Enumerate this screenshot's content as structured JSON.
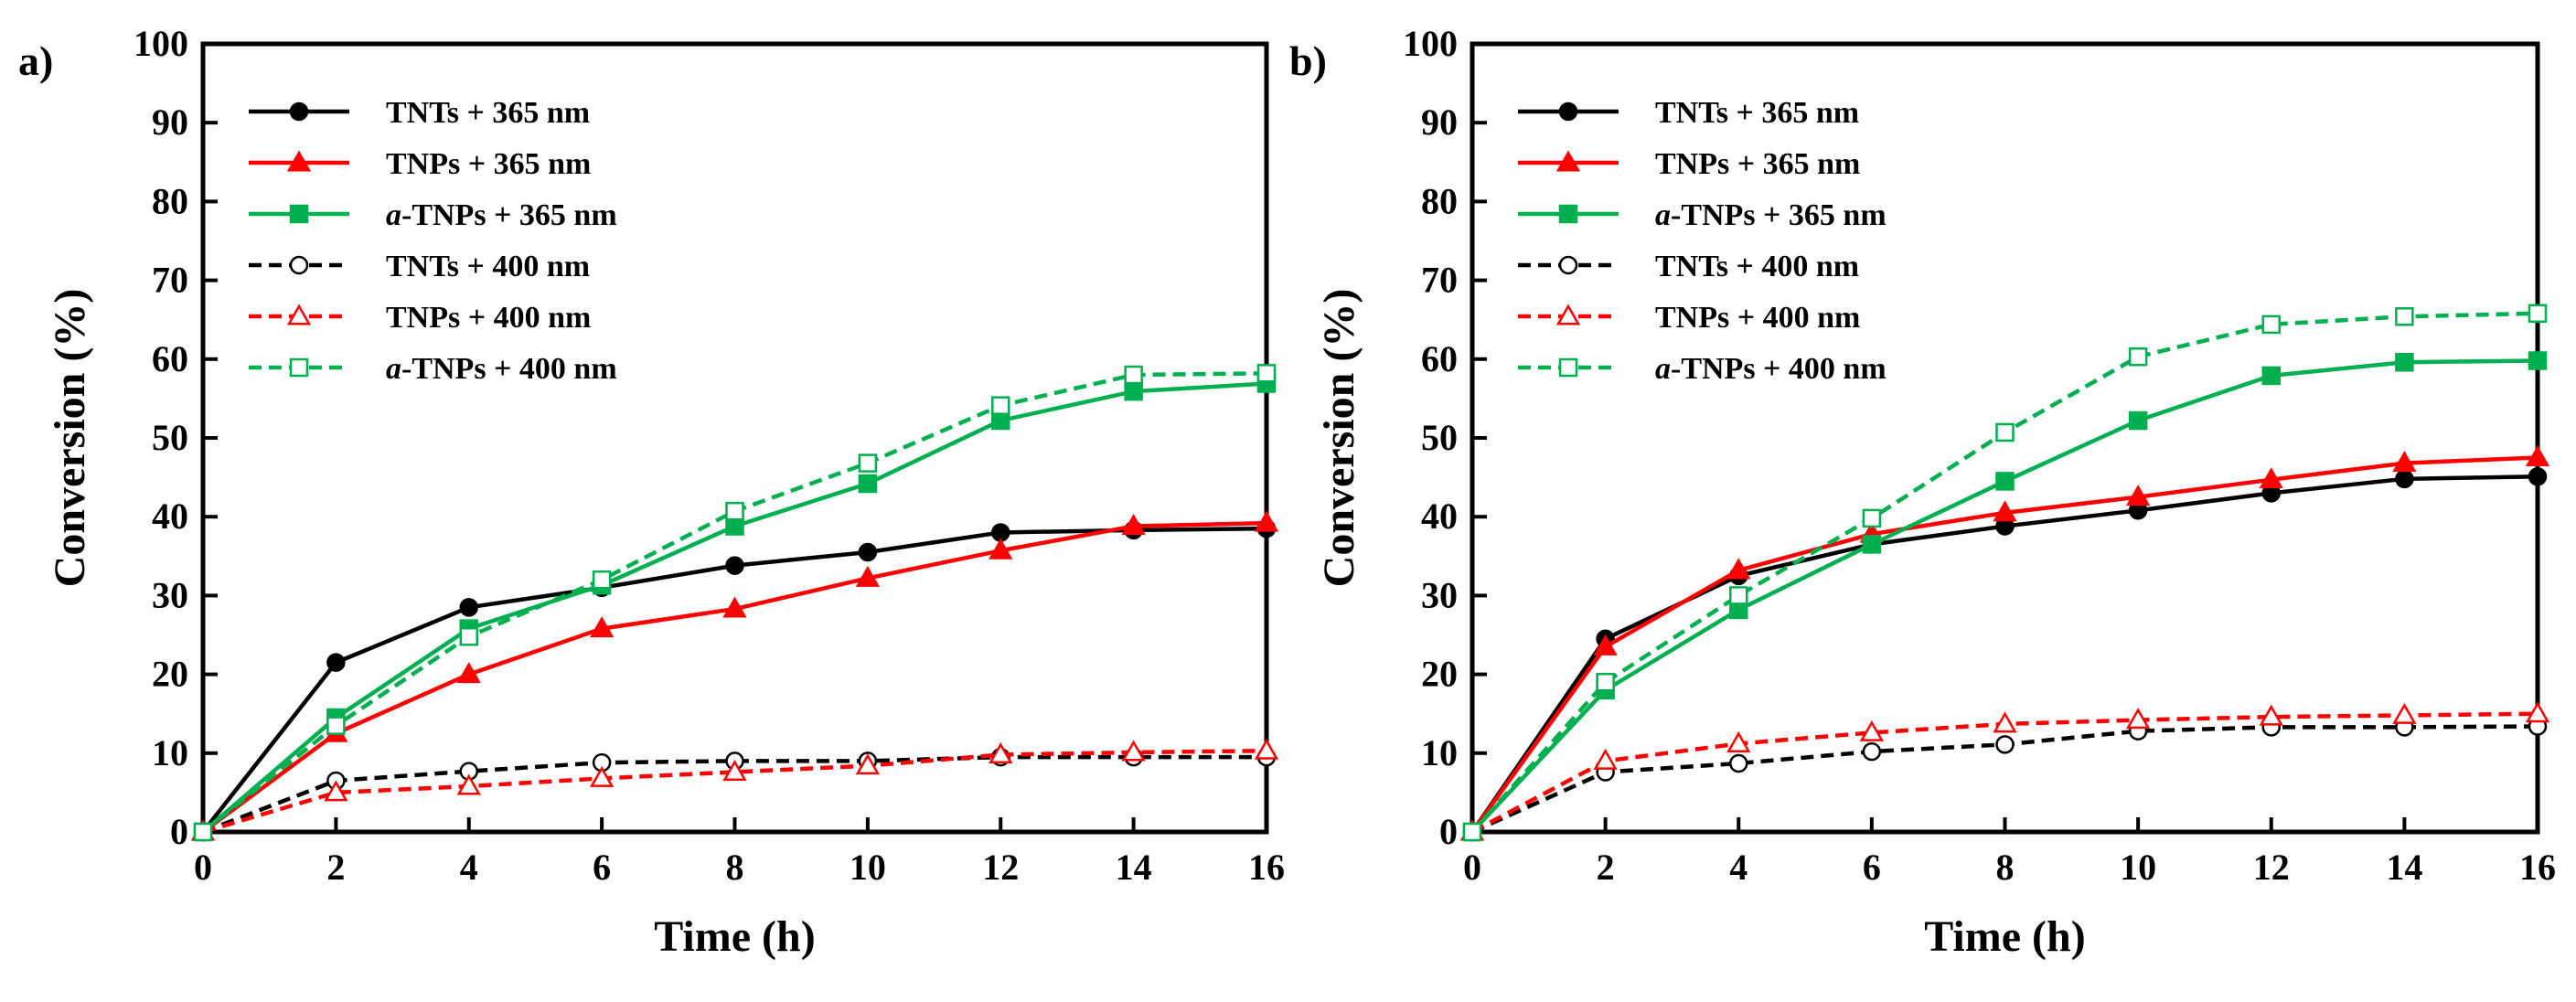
{
  "chart_data": [
    {
      "panel": "a)",
      "type": "line",
      "xlabel": "Time (h)",
      "ylabel": "Conversion (%)",
      "xlim": [
        0,
        16
      ],
      "ylim": [
        0,
        100
      ],
      "xticks": [
        0,
        2,
        4,
        6,
        8,
        10,
        12,
        14,
        16
      ],
      "yticks": [
        0,
        10,
        20,
        30,
        40,
        50,
        60,
        70,
        80,
        90,
        100
      ],
      "grid": false,
      "legend_position": "top-left",
      "x": [
        0,
        2,
        4,
        6,
        8,
        10,
        12,
        14,
        16
      ],
      "series": [
        {
          "name": "TNTs + 365 nm",
          "legend_italic": "",
          "legend_rest": "TNTs + 365 nm",
          "color": "#000000",
          "marker": "circle",
          "filled": true,
          "dashed": false,
          "values": [
            0,
            21.5,
            28.5,
            31.0,
            33.8,
            35.5,
            38.0,
            38.3,
            38.5
          ]
        },
        {
          "name": "TNPs + 365 nm",
          "legend_italic": "",
          "legend_rest": "TNPs + 365 nm",
          "color": "#ff0000",
          "marker": "triangle",
          "filled": true,
          "dashed": false,
          "values": [
            0,
            12.5,
            20.0,
            25.8,
            28.3,
            32.2,
            35.7,
            38.8,
            39.2
          ]
        },
        {
          "name": "a-TNPs + 365 nm",
          "legend_italic": "a",
          "legend_rest": "-TNPs + 365 nm",
          "color": "#00b050",
          "marker": "square",
          "filled": true,
          "dashed": false,
          "values": [
            0,
            14.5,
            25.8,
            31.3,
            38.8,
            44.2,
            52.2,
            55.9,
            56.9
          ]
        },
        {
          "name": "TNTs + 400 nm",
          "legend_italic": "",
          "legend_rest": "TNTs + 400 nm",
          "color": "#000000",
          "marker": "circle",
          "filled": false,
          "dashed": true,
          "values": [
            0,
            6.5,
            7.7,
            8.8,
            9.0,
            9.0,
            9.5,
            9.5,
            9.5
          ]
        },
        {
          "name": "TNPs + 400 nm",
          "legend_italic": "",
          "legend_rest": "TNPs + 400 nm",
          "color": "#ff0000",
          "marker": "triangle",
          "filled": false,
          "dashed": true,
          "values": [
            0,
            5.0,
            5.8,
            6.8,
            7.6,
            8.4,
            9.8,
            10.1,
            10.3
          ]
        },
        {
          "name": "a-TNPs + 400 nm",
          "legend_italic": "a",
          "legend_rest": "-TNPs + 400 nm",
          "color": "#00b050",
          "marker": "square",
          "filled": false,
          "dashed": true,
          "values": [
            0,
            13.5,
            24.8,
            32.0,
            40.7,
            46.8,
            54.1,
            58.0,
            58.2
          ]
        }
      ]
    },
    {
      "panel": "b)",
      "type": "line",
      "xlabel": "Time (h)",
      "ylabel": "Conversion (%)",
      "xlim": [
        0,
        16
      ],
      "ylim": [
        0,
        100
      ],
      "xticks": [
        0,
        2,
        4,
        6,
        8,
        10,
        12,
        14,
        16
      ],
      "yticks": [
        0,
        10,
        20,
        30,
        40,
        50,
        60,
        70,
        80,
        90,
        100
      ],
      "grid": false,
      "legend_position": "top-left",
      "x": [
        0,
        2,
        4,
        6,
        8,
        10,
        12,
        14,
        16
      ],
      "series": [
        {
          "name": "TNTs + 365 nm",
          "legend_italic": "",
          "legend_rest": "TNTs + 365 nm",
          "color": "#000000",
          "marker": "circle",
          "filled": true,
          "dashed": false,
          "values": [
            0,
            24.5,
            32.5,
            36.5,
            38.8,
            40.8,
            43.0,
            44.8,
            45.1
          ]
        },
        {
          "name": "TNPs + 365 nm",
          "legend_italic": "",
          "legend_rest": "TNPs + 365 nm",
          "color": "#ff0000",
          "marker": "triangle",
          "filled": true,
          "dashed": false,
          "values": [
            0,
            23.5,
            33.2,
            37.8,
            40.5,
            42.5,
            44.7,
            46.8,
            47.5
          ]
        },
        {
          "name": "a-TNPs + 365 nm",
          "legend_italic": "a",
          "legend_rest": "-TNPs + 365 nm",
          "color": "#00b050",
          "marker": "square",
          "filled": true,
          "dashed": false,
          "values": [
            0,
            18.0,
            28.2,
            36.5,
            44.5,
            52.2,
            57.9,
            59.6,
            59.8
          ]
        },
        {
          "name": "TNTs + 400 nm",
          "legend_italic": "",
          "legend_rest": "TNTs + 400 nm",
          "color": "#000000",
          "marker": "circle",
          "filled": false,
          "dashed": true,
          "values": [
            0,
            7.6,
            8.7,
            10.2,
            11.1,
            12.8,
            13.3,
            13.3,
            13.4
          ]
        },
        {
          "name": "TNPs + 400 nm",
          "legend_italic": "",
          "legend_rest": "TNPs + 400 nm",
          "color": "#ff0000",
          "marker": "triangle",
          "filled": false,
          "dashed": true,
          "values": [
            0,
            9.0,
            11.2,
            12.6,
            13.7,
            14.2,
            14.6,
            14.8,
            15.0
          ]
        },
        {
          "name": "a-TNPs + 400 nm",
          "legend_italic": "a",
          "legend_rest": "-TNPs + 400 nm",
          "color": "#00b050",
          "marker": "square",
          "filled": false,
          "dashed": true,
          "values": [
            0,
            19.0,
            30.0,
            39.8,
            50.7,
            60.3,
            64.4,
            65.4,
            65.8
          ]
        }
      ]
    }
  ]
}
